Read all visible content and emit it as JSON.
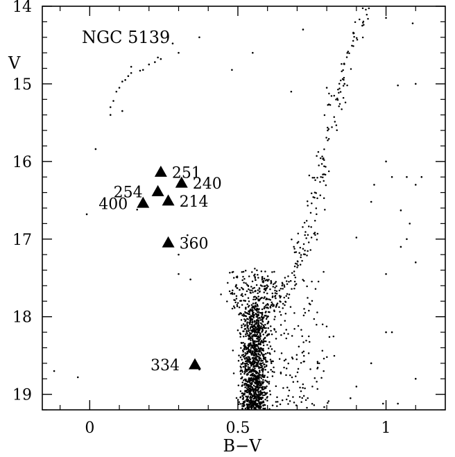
{
  "chart_data": {
    "type": "scatter",
    "title": "NGC 5139",
    "xlabel": "B−V",
    "ylabel": "V",
    "xlim": [
      -0.16,
      1.2
    ],
    "ylim": [
      14.0,
      19.2
    ],
    "y_inverted": true,
    "x_ticks": [
      {
        "value": 0,
        "label": "0"
      },
      {
        "value": 0.5,
        "label": "0.5"
      },
      {
        "value": 1,
        "label": "1"
      }
    ],
    "y_ticks": [
      {
        "value": 14,
        "label": "14"
      },
      {
        "value": 15,
        "label": "15"
      },
      {
        "value": 16,
        "label": "16"
      },
      {
        "value": 17,
        "label": "17"
      },
      {
        "value": 18,
        "label": "18"
      },
      {
        "value": 19,
        "label": "19"
      }
    ],
    "x_minor_step": 0.1,
    "y_minor_step": 0.2,
    "marked_stars": [
      {
        "label": "251",
        "x": 0.24,
        "y": 16.14,
        "label_side": "right"
      },
      {
        "label": "240",
        "x": 0.31,
        "y": 16.28,
        "label_side": "right"
      },
      {
        "label": "254",
        "x": 0.23,
        "y": 16.39,
        "label_side": "left"
      },
      {
        "label": "214",
        "x": 0.265,
        "y": 16.51,
        "label_side": "right"
      },
      {
        "label": "400",
        "x": 0.18,
        "y": 16.54,
        "label_side": "left"
      },
      {
        "label": "360",
        "x": 0.265,
        "y": 17.05,
        "label_side": "right"
      },
      {
        "label": "334",
        "x": 0.355,
        "y": 18.62,
        "label_side": "left"
      }
    ],
    "field_stars": [
      [
        0.07,
        15.3
      ],
      [
        0.07,
        15.4
      ],
      [
        0.08,
        15.22
      ],
      [
        0.09,
        15.1
      ],
      [
        0.1,
        15.05
      ],
      [
        0.11,
        14.97
      ],
      [
        0.12,
        14.95
      ],
      [
        0.13,
        14.9
      ],
      [
        0.14,
        14.86
      ],
      [
        0.14,
        14.78
      ],
      [
        0.17,
        14.83
      ],
      [
        0.18,
        14.82
      ],
      [
        0.2,
        14.75
      ],
      [
        0.22,
        14.72
      ],
      [
        0.23,
        14.66
      ],
      [
        0.24,
        14.68
      ],
      [
        0.28,
        14.48
      ],
      [
        0.3,
        14.6
      ],
      [
        0.37,
        14.4
      ],
      [
        0.11,
        15.35
      ],
      [
        0.02,
        15.84
      ],
      [
        -0.01,
        16.68
      ],
      [
        0.16,
        16.62
      ],
      [
        0.33,
        16.95
      ],
      [
        0.3,
        17.2
      ],
      [
        0.3,
        17.45
      ],
      [
        0.34,
        17.52
      ],
      [
        0.37,
        18.68
      ],
      [
        -0.12,
        18.7
      ],
      [
        -0.04,
        18.78
      ],
      [
        0.55,
        14.6
      ],
      [
        0.48,
        14.82
      ],
      [
        0.72,
        14.3
      ],
      [
        0.68,
        15.1
      ],
      [
        0.8,
        15.05
      ],
      [
        0.86,
        15.0
      ],
      [
        0.89,
        14.35
      ],
      [
        0.92,
        14.25
      ],
      [
        0.94,
        14.0
      ],
      [
        0.96,
        13.96
      ],
      [
        1.0,
        14.15
      ],
      [
        1.04,
        15.02
      ],
      [
        1.09,
        14.22
      ],
      [
        1.1,
        15.0
      ],
      [
        1.07,
        16.2
      ],
      [
        1.1,
        16.3
      ],
      [
        1.02,
        16.2
      ],
      [
        1.0,
        16.0
      ],
      [
        1.05,
        16.63
      ],
      [
        1.08,
        16.8
      ],
      [
        1.07,
        17.0
      ],
      [
        1.05,
        17.1
      ],
      [
        1.1,
        17.3
      ],
      [
        1.0,
        17.45
      ],
      [
        1.02,
        18.2
      ],
      [
        1.1,
        18.8
      ],
      [
        1.04,
        19.12
      ],
      [
        0.99,
        19.12
      ],
      [
        1.0,
        18.2
      ],
      [
        0.95,
        18.6
      ],
      [
        0.9,
        18.9
      ],
      [
        0.88,
        19.05
      ],
      [
        0.9,
        16.98
      ],
      [
        0.95,
        16.52
      ],
      [
        0.96,
        16.3
      ],
      [
        1.12,
        16.2
      ]
    ],
    "giant_branch": {
      "top": [
        0.945,
        13.96
      ],
      "points": [
        [
          0.945,
          13.96
        ],
        [
          0.9,
          14.4
        ],
        [
          0.86,
          14.8
        ],
        [
          0.83,
          15.2
        ],
        [
          0.8,
          15.7
        ],
        [
          0.78,
          16.1
        ],
        [
          0.76,
          16.5
        ],
        [
          0.74,
          16.9
        ],
        [
          0.72,
          17.2
        ],
        [
          0.68,
          17.5
        ],
        [
          0.64,
          17.8
        ],
        [
          0.6,
          18.0
        ],
        [
          0.57,
          18.2
        ]
      ],
      "count": 230,
      "spread_x": 0.035
    },
    "main_sequence": {
      "center_x": 0.555,
      "y_range": [
        17.35,
        19.2
      ],
      "count": 1500,
      "spread_x": 0.045
    },
    "colors": {
      "marker": "#000000",
      "axes": "#000000",
      "background": "#ffffff"
    }
  }
}
